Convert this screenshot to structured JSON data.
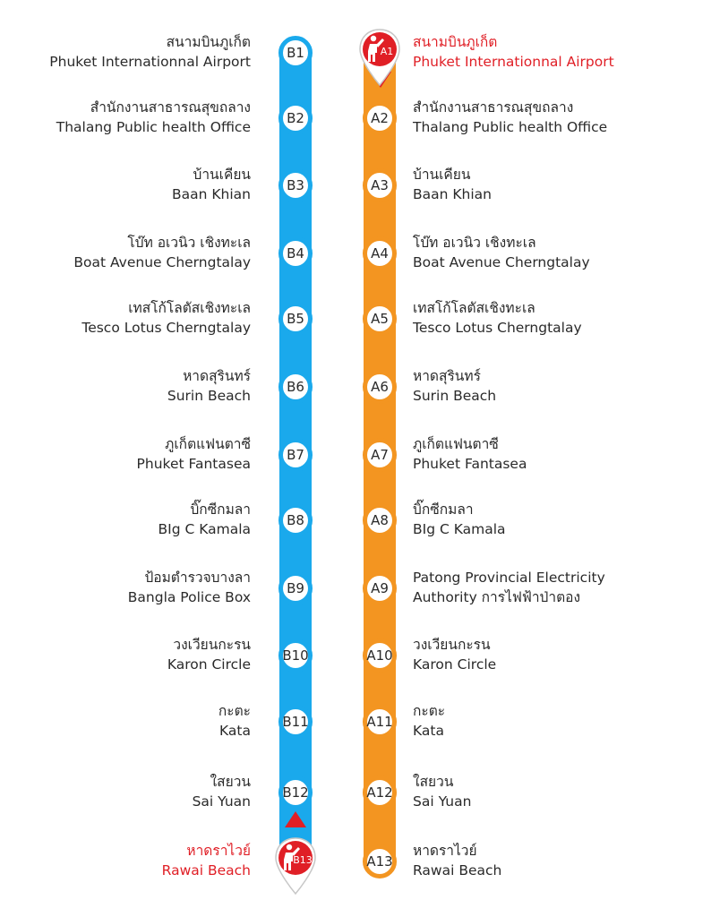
{
  "routes": {
    "b": {
      "color": "#1aa9ec",
      "stops": [
        {
          "code": "B1",
          "th": "สนามบินภูเก็ต",
          "en": "Phuket Internationnal Airport"
        },
        {
          "code": "B2",
          "th": "สำนักงานสาธารณสุขถลาง",
          "en": "Thalang Public health Office"
        },
        {
          "code": "B3",
          "th": "บ้านเคียน",
          "en": "Baan Khian"
        },
        {
          "code": "B4",
          "th": "โบ๊ท อเวนิว เชิงทะเล",
          "en": "Boat Avenue Cherngtalay"
        },
        {
          "code": "B5",
          "th": "เทสโก้โลตัสเชิงทะเล",
          "en": "Tesco Lotus Cherngtalay"
        },
        {
          "code": "B6",
          "th": "หาดสุรินทร์",
          "en": "Surin Beach"
        },
        {
          "code": "B7",
          "th": "ภูเก็ตแฟนตาซี",
          "en": "Phuket Fantasea"
        },
        {
          "code": "B8",
          "th": "บิ๊กซีกมลา",
          "en": "BIg C Kamala"
        },
        {
          "code": "B9",
          "th": "ป้อมตำรวจบางลา",
          "en": "Bangla Police Box"
        },
        {
          "code": "B10",
          "th": "วงเวียนกะรน",
          "en": "Karon Circle"
        },
        {
          "code": "B11",
          "th": "กะตะ",
          "en": "Kata"
        },
        {
          "code": "B12",
          "th": "ใสยวน",
          "en": "Sai Yuan"
        },
        {
          "code": "B13",
          "th": "หาดราไวย์",
          "en": "Rawai Beach"
        }
      ]
    },
    "a": {
      "color": "#f39521",
      "stops": [
        {
          "code": "A1",
          "th": "สนามบินภูเก็ต",
          "en": "Phuket Internationnal Airport"
        },
        {
          "code": "A2",
          "th": "สำนักงานสาธารณสุขถลาง",
          "en": "Thalang Public health Office"
        },
        {
          "code": "A3",
          "th": "บ้านเคียน",
          "en": "Baan Khian"
        },
        {
          "code": "A4",
          "th": "โบ๊ท อเวนิว เชิงทะเล",
          "en": "Boat Avenue Cherngtalay"
        },
        {
          "code": "A5",
          "th": "เทสโก้โลตัสเชิงทะเล",
          "en": "Tesco Lotus Cherngtalay"
        },
        {
          "code": "A6",
          "th": "หาดสุรินทร์",
          "en": "Surin Beach"
        },
        {
          "code": "A7",
          "th": "ภูเก็ตแฟนตาซี",
          "en": "Phuket Fantasea"
        },
        {
          "code": "A8",
          "th": "บิ๊กซีกมลา",
          "en": "BIg C Kamala"
        },
        {
          "code": "A9",
          "th": "Patong Provincial Electricity",
          "en": "Authority การไฟฟ้าป่าตอง"
        },
        {
          "code": "A10",
          "th": "วงเวียนกะรน",
          "en": "Karon Circle"
        },
        {
          "code": "A11",
          "th": "กะตะ",
          "en": "Kata"
        },
        {
          "code": "A12",
          "th": "ใสยวน",
          "en": "Sai Yuan"
        },
        {
          "code": "A13",
          "th": "หาดราไวย์",
          "en": "Rawai Beach"
        }
      ]
    }
  },
  "highlight_color": "#e01f26",
  "start_marker": {
    "icon": "person-pin-icon",
    "route": "a",
    "stop": "A1"
  },
  "end_marker": {
    "icon": "person-pin-icon",
    "route": "b",
    "stop": "B13"
  }
}
